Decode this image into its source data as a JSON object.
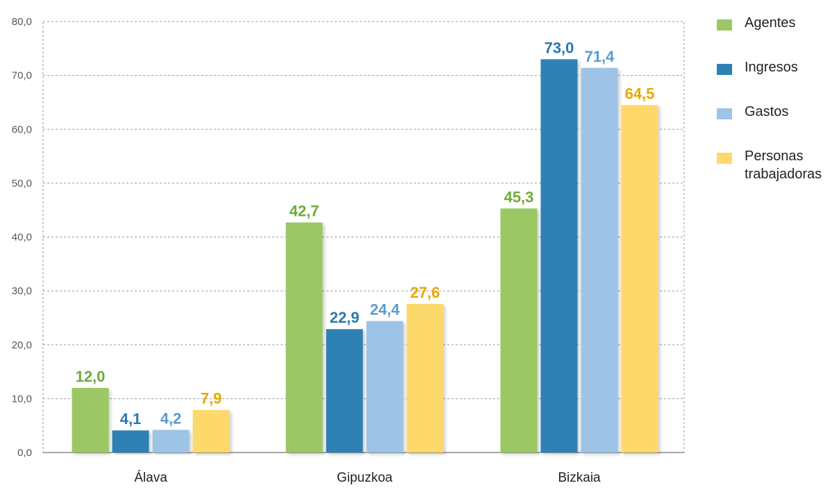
{
  "chart_data": {
    "type": "bar",
    "categories": [
      "Álava",
      "Gipuzkoa",
      "Bizkaia"
    ],
    "series": [
      {
        "name": "Agentes",
        "color": "#9BC865",
        "label_color": "#6FAA3A",
        "values": [
          12.0,
          42.7,
          45.3
        ],
        "labels": [
          "12,0",
          "42,7",
          "45,3"
        ]
      },
      {
        "name": "Ingresos",
        "color": "#2E81B4",
        "label_color": "#2A78AE",
        "values": [
          4.1,
          22.9,
          73.0
        ],
        "labels": [
          "4,1",
          "22,9",
          "73,0"
        ]
      },
      {
        "name": "Gastos",
        "color": "#9DC3E6",
        "label_color": "#5A9BD0",
        "values": [
          4.2,
          24.4,
          71.4
        ],
        "labels": [
          "4,2",
          "24,4",
          "71,4"
        ]
      },
      {
        "name": "Personas trabajadoras",
        "legend_lines": [
          "Personas",
          "trabajadoras"
        ],
        "color": "#FDD96C",
        "label_color": "#E7A800",
        "values": [
          7.9,
          27.6,
          64.5
        ],
        "labels": [
          "7,9",
          "27,6",
          "64,5"
        ]
      }
    ],
    "ylim": [
      0,
      80
    ],
    "yticks": [
      0,
      10,
      20,
      30,
      40,
      50,
      60,
      70,
      80
    ],
    "ytick_labels": [
      "0,0",
      "10,0",
      "20,0",
      "30,0",
      "40,0",
      "50,0",
      "60,0",
      "70,0",
      "80,0"
    ],
    "grid": true,
    "legend_position": "right",
    "title": "",
    "xlabel": "",
    "ylabel": ""
  }
}
